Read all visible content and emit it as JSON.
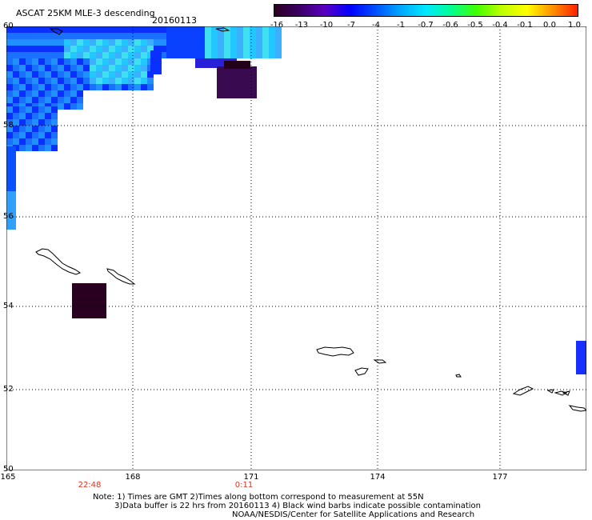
{
  "header": {
    "title": "ASCAT 25KM MLE-3 descending",
    "date": "20160113"
  },
  "colorbar": {
    "labels": [
      "-16",
      "-13",
      "-10",
      "-7",
      "-4",
      "-1",
      "-0.7",
      "-0.6",
      "-0.5",
      "-0.4",
      "-0.1",
      "0.0",
      "1.0"
    ],
    "colors": [
      "#2a0020",
      "#3d0066",
      "#5a00c0",
      "#0000ff",
      "#0050ff",
      "#00a8ff",
      "#00e8ff",
      "#00ff90",
      "#40ff00",
      "#c0ff00",
      "#ffff00",
      "#ff9000",
      "#ff2000"
    ]
  },
  "axes": {
    "lat_labels": [
      "60",
      "58",
      "56",
      "54",
      "52",
      "50"
    ],
    "lon_labels": [
      "165",
      "168",
      "171",
      "174",
      "177"
    ]
  },
  "times": [
    "22:48",
    "0:11"
  ],
  "notes": {
    "line1": "Note: 1) Times are GMT 2)Times along bottom correspond to measurement at 55N",
    "line2": "3)Data buffer is 22 hrs from 20160113 4) Black wind barbs indicate possible contamination",
    "line3": "NOAA/NESDIS/Center for Satellite Applications and Research"
  }
}
